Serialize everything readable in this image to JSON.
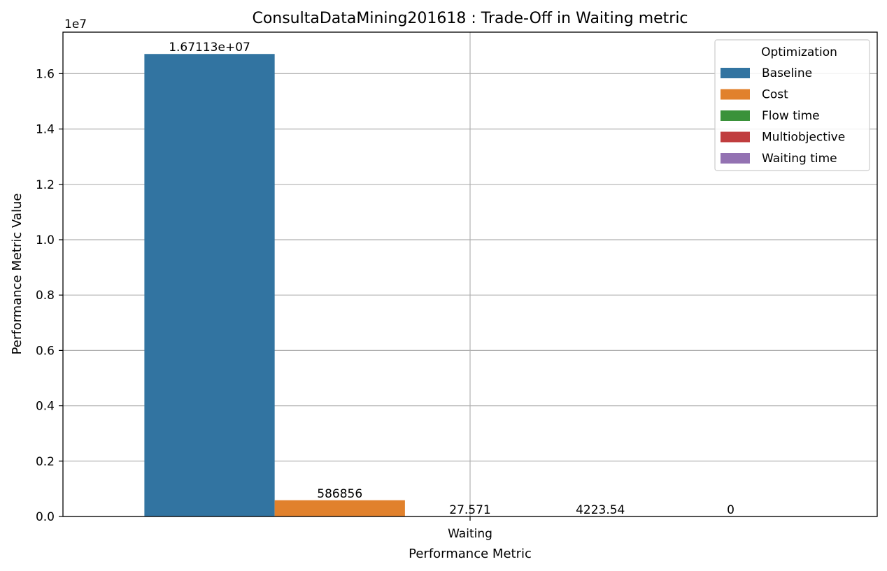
{
  "chart_data": {
    "type": "bar",
    "title": "ConsultaDataMining201618 : Trade-Off in Waiting metric",
    "xlabel": "Performance Metric",
    "ylabel": "Performance Metric Value",
    "categories": [
      "Waiting"
    ],
    "y_offset_label": "1e7",
    "ylim": [
      0,
      17500000
    ],
    "yticks": [
      0,
      2000000,
      4000000,
      6000000,
      8000000,
      10000000,
      12000000,
      14000000,
      16000000
    ],
    "ytick_labels": [
      "0.0",
      "0.2",
      "0.4",
      "0.6",
      "0.8",
      "1.0",
      "1.2",
      "1.4",
      "1.6"
    ],
    "grid": true,
    "legend": {
      "title": "Optimization",
      "placement": "upper right"
    },
    "series": [
      {
        "name": "Baseline",
        "values": [
          16711300
        ],
        "label": "1.67113e+07",
        "color": "#3274a1"
      },
      {
        "name": "Cost",
        "values": [
          586856
        ],
        "label": "586856",
        "color": "#e1812c"
      },
      {
        "name": "Flow time",
        "values": [
          27.571
        ],
        "label": "27.571",
        "color": "#3a923a"
      },
      {
        "name": "Multiobjective",
        "values": [
          4223.54
        ],
        "label": "4223.54",
        "color": "#c03d3e"
      },
      {
        "name": "Waiting time",
        "values": [
          0
        ],
        "label": "0",
        "color": "#9372b2"
      }
    ]
  }
}
